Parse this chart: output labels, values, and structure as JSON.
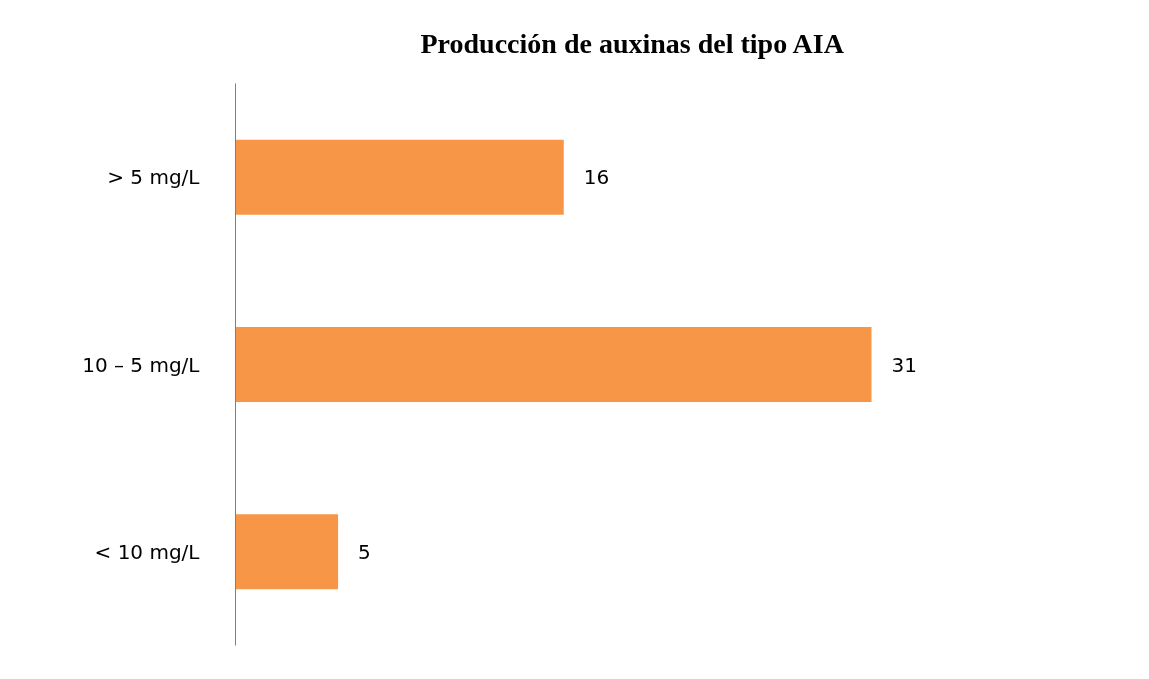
{
  "chart_data": {
    "type": "bar",
    "orientation": "horizontal",
    "title": "Producción de auxinas del tipo AIA",
    "categories": [
      "> 5 mg/L",
      "10 – 5 mg/L",
      "< 10 mg/L"
    ],
    "values": [
      16,
      31,
      5
    ],
    "color": "#f79646",
    "data_labels": true,
    "grid": false
  }
}
